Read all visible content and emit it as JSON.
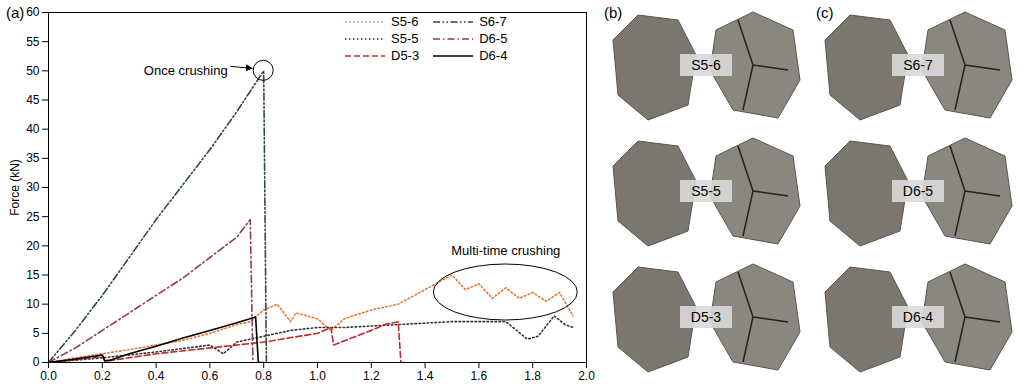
{
  "chart_data": {
    "type": "line",
    "y_label": "Force (kN)",
    "xlim": [
      0,
      2
    ],
    "ylim": [
      0,
      60
    ],
    "xticks": [
      {
        "value": 0,
        "label": "0.0"
      },
      0.2,
      0.4,
      0.6,
      0.8,
      {
        "value": 1,
        "label": "1.0"
      },
      1.2,
      1.4,
      1.6,
      1.8,
      {
        "value": 2,
        "label": "2.0"
      }
    ],
    "yticks": [
      0,
      5,
      10,
      15,
      20,
      25,
      30,
      35,
      40,
      45,
      50,
      55,
      60
    ],
    "legend": "top-right",
    "series": [
      {
        "name": "S5-6",
        "color": "#e8772e",
        "line_style": "dotted",
        "x": [
          0,
          0.1,
          0.2,
          0.3,
          0.4,
          0.5,
          0.6,
          0.7,
          0.75,
          0.8,
          0.85,
          0.9,
          0.92,
          1.0,
          1.05,
          1.1,
          1.2,
          1.3,
          1.4,
          1.5,
          1.55,
          1.6,
          1.65,
          1.7,
          1.75,
          1.8,
          1.85,
          1.9,
          1.95
        ],
        "values": [
          0,
          0.8,
          1.5,
          2.2,
          3,
          3.8,
          5,
          6.5,
          7,
          9,
          10,
          7,
          8.5,
          7.5,
          5.5,
          7.5,
          9,
          10,
          12.5,
          15,
          12.5,
          13.5,
          11,
          12.8,
          11,
          12,
          10.5,
          12,
          8
        ]
      },
      {
        "name": "S6-7",
        "color": "#2f4a3a",
        "line_style": "dashdotdot",
        "x": [
          0,
          0.1,
          0.2,
          0.3,
          0.4,
          0.5,
          0.6,
          0.7,
          0.8,
          0.805,
          0.81
        ],
        "values": [
          0,
          5.5,
          11.5,
          18,
          24.5,
          30.5,
          36.5,
          43,
          50,
          25,
          0
        ]
      },
      {
        "name": "S5-5",
        "color": "#333333",
        "line_style": "dotted",
        "x": [
          0,
          0.2,
          0.4,
          0.6,
          0.65,
          0.7,
          0.8,
          0.9,
          1.0,
          1.1,
          1.3,
          1.5,
          1.7,
          1.78,
          1.82,
          1.88,
          1.92,
          1.95
        ],
        "values": [
          0,
          0.8,
          1.8,
          3,
          1.5,
          3.5,
          4.5,
          5.5,
          6,
          6,
          6.5,
          7,
          7,
          4,
          4.5,
          8,
          6.5,
          6
        ]
      },
      {
        "name": "D6-5",
        "color": "#8b3a62",
        "line_style": "dashdot",
        "x": [
          0,
          0.1,
          0.2,
          0.3,
          0.4,
          0.5,
          0.6,
          0.7,
          0.75,
          0.76
        ],
        "values": [
          0,
          2.5,
          5.5,
          8.5,
          11.5,
          14.5,
          18,
          21.5,
          24.5,
          0
        ]
      },
      {
        "name": "D5-3",
        "color": "#c0282d",
        "line_style": "dashed",
        "x": [
          0,
          0.2,
          0.21,
          0.4,
          0.6,
          0.8,
          1.0,
          1.05,
          1.06,
          1.2,
          1.25,
          1.3,
          1.31,
          1.32
        ],
        "values": [
          0,
          1,
          0.2,
          1.5,
          2.5,
          3.5,
          5,
          6,
          3,
          5.5,
          6.5,
          7,
          0,
          0
        ]
      },
      {
        "name": "D6-4",
        "color": "#000000",
        "line_style": "solid",
        "x": [
          0,
          0.1,
          0.2,
          0.21,
          0.23,
          0.3,
          0.4,
          0.5,
          0.6,
          0.7,
          0.77,
          0.78,
          0.8
        ],
        "values": [
          0,
          0.6,
          1.3,
          0.3,
          0.4,
          1.5,
          2.8,
          4.2,
          5.5,
          6.8,
          7.8,
          0,
          0
        ]
      }
    ],
    "annotations": [
      {
        "text": "Once crushing",
        "x": 0.8,
        "y": 50
      },
      {
        "text": "Multi-time crushing",
        "x": 1.7,
        "y": 12
      }
    ]
  },
  "figure": {
    "panel_labels": [
      "(a)",
      "(b)",
      "(c)"
    ],
    "photos": {
      "(b)": [
        "S5-6",
        "S5-5",
        "D5-3"
      ],
      "(c)": [
        "S6-7",
        "D6-5",
        "D6-4"
      ]
    }
  }
}
